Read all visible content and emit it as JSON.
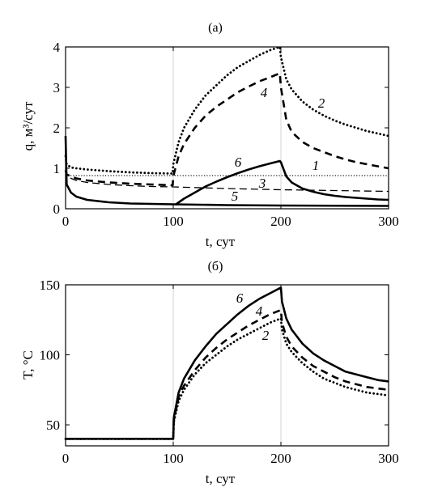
{
  "chart_data": [
    {
      "type": "line",
      "panel_label": "(а)",
      "xlabel": "t, сут",
      "ylabel": "q, м³/сут",
      "xlim": [
        0,
        300
      ],
      "ylim": [
        0,
        4
      ],
      "xticks": [
        "0",
        "100",
        "200",
        "300"
      ],
      "yticks": [
        "0",
        "1",
        "2",
        "3",
        "4"
      ],
      "vertical_reference_lines": [
        100,
        200
      ],
      "series": [
        {
          "name": "1",
          "style": "dotted-thin",
          "x": [
            0,
            300
          ],
          "y": [
            0.82,
            0.82
          ]
        },
        {
          "name": "2",
          "style": "dotted",
          "x": [
            0,
            1,
            5,
            10,
            20,
            40,
            60,
            80,
            99.5,
            100,
            105,
            110,
            120,
            130,
            140,
            150,
            160,
            170,
            180,
            190,
            199,
            200,
            205,
            210,
            220,
            230,
            240,
            250,
            260,
            270,
            280,
            290,
            300
          ],
          "y": [
            1.3,
            1.1,
            1.02,
            1.0,
            0.97,
            0.93,
            0.9,
            0.88,
            0.87,
            1.1,
            1.65,
            2.0,
            2.45,
            2.8,
            3.05,
            3.3,
            3.5,
            3.65,
            3.8,
            3.92,
            4.0,
            3.75,
            3.2,
            2.95,
            2.65,
            2.45,
            2.3,
            2.18,
            2.08,
            2.0,
            1.92,
            1.86,
            1.8
          ]
        },
        {
          "name": "3",
          "style": "dashed-thin",
          "x": [
            0,
            1,
            5,
            10,
            20,
            40,
            60,
            80,
            100,
            150,
            200,
            250,
            300
          ],
          "y": [
            1.0,
            0.85,
            0.75,
            0.7,
            0.65,
            0.6,
            0.57,
            0.55,
            0.54,
            0.5,
            0.47,
            0.45,
            0.43
          ]
        },
        {
          "name": "4",
          "style": "dashed",
          "x": [
            0,
            1,
            5,
            10,
            20,
            40,
            60,
            80,
            99.5,
            100,
            105,
            110,
            120,
            130,
            140,
            150,
            160,
            170,
            180,
            190,
            199,
            200,
            205,
            210,
            220,
            230,
            240,
            250,
            260,
            270,
            280,
            290,
            300
          ],
          "y": [
            0.95,
            0.85,
            0.8,
            0.75,
            0.7,
            0.65,
            0.62,
            0.6,
            0.58,
            0.8,
            1.3,
            1.6,
            2.0,
            2.3,
            2.52,
            2.7,
            2.88,
            3.02,
            3.15,
            3.25,
            3.35,
            3.0,
            2.2,
            1.9,
            1.65,
            1.5,
            1.4,
            1.3,
            1.22,
            1.15,
            1.1,
            1.05,
            1.0
          ]
        },
        {
          "name": "5",
          "style": "solid",
          "x": [
            0,
            1,
            5,
            10,
            20,
            40,
            60,
            80,
            100,
            150,
            200,
            250,
            300
          ],
          "y": [
            1.8,
            0.6,
            0.4,
            0.3,
            0.22,
            0.16,
            0.13,
            0.12,
            0.11,
            0.09,
            0.08,
            0.075,
            0.07
          ]
        },
        {
          "name": "6",
          "style": "solid",
          "x": [
            0,
            100,
            102,
            110,
            120,
            130,
            140,
            150,
            160,
            170,
            180,
            190,
            199,
            200,
            205,
            210,
            220,
            230,
            240,
            250,
            260,
            270,
            280,
            290,
            300
          ],
          "y": [
            null,
            null,
            0.1,
            0.25,
            0.4,
            0.55,
            0.67,
            0.78,
            0.88,
            0.97,
            1.05,
            1.12,
            1.18,
            1.15,
            0.8,
            0.65,
            0.5,
            0.42,
            0.36,
            0.32,
            0.29,
            0.27,
            0.25,
            0.23,
            0.22
          ]
        }
      ]
    },
    {
      "type": "line",
      "panel_label": "(б)",
      "xlabel": "t, сут",
      "ylabel": "T, °C",
      "xlim": [
        0,
        300
      ],
      "ylim": [
        35,
        150
      ],
      "xticks": [
        "0",
        "100",
        "200",
        "300"
      ],
      "yticks": [
        "50",
        "100",
        "150"
      ],
      "vertical_reference_lines": [
        100,
        200
      ],
      "series": [
        {
          "name": "6",
          "style": "solid",
          "x": [
            0,
            100,
            100.5,
            105,
            110,
            120,
            130,
            140,
            150,
            160,
            170,
            180,
            190,
            200,
            201,
            205,
            210,
            220,
            230,
            240,
            250,
            260,
            270,
            280,
            290,
            300
          ],
          "y": [
            40,
            40,
            55,
            73,
            83,
            96,
            106,
            115,
            122,
            129,
            135,
            140,
            144,
            148,
            138,
            126,
            118,
            108,
            101,
            96,
            92,
            88,
            86,
            84,
            82,
            81
          ]
        },
        {
          "name": "4",
          "style": "dashed",
          "x": [
            0,
            100,
            100.5,
            105,
            110,
            120,
            130,
            140,
            150,
            160,
            170,
            180,
            190,
            200,
            201,
            205,
            210,
            220,
            230,
            240,
            250,
            260,
            270,
            280,
            290,
            300
          ],
          "y": [
            40,
            40,
            53,
            70,
            78,
            89,
            98,
            105,
            111,
            116,
            121,
            125,
            129,
            132,
            123,
            113,
            106,
            98,
            92,
            88,
            84,
            81,
            79,
            77,
            76,
            75
          ]
        },
        {
          "name": "2",
          "style": "dotted",
          "x": [
            0,
            100,
            100.5,
            105,
            110,
            120,
            130,
            140,
            150,
            160,
            170,
            180,
            190,
            200,
            201,
            205,
            210,
            220,
            230,
            240,
            250,
            260,
            270,
            280,
            290,
            300
          ],
          "y": [
            40,
            40,
            52,
            67,
            75,
            86,
            94,
            100,
            106,
            111,
            115,
            119,
            123,
            126,
            118,
            108,
            102,
            94,
            88,
            83,
            80,
            77,
            75,
            73,
            72,
            71
          ]
        }
      ]
    }
  ]
}
